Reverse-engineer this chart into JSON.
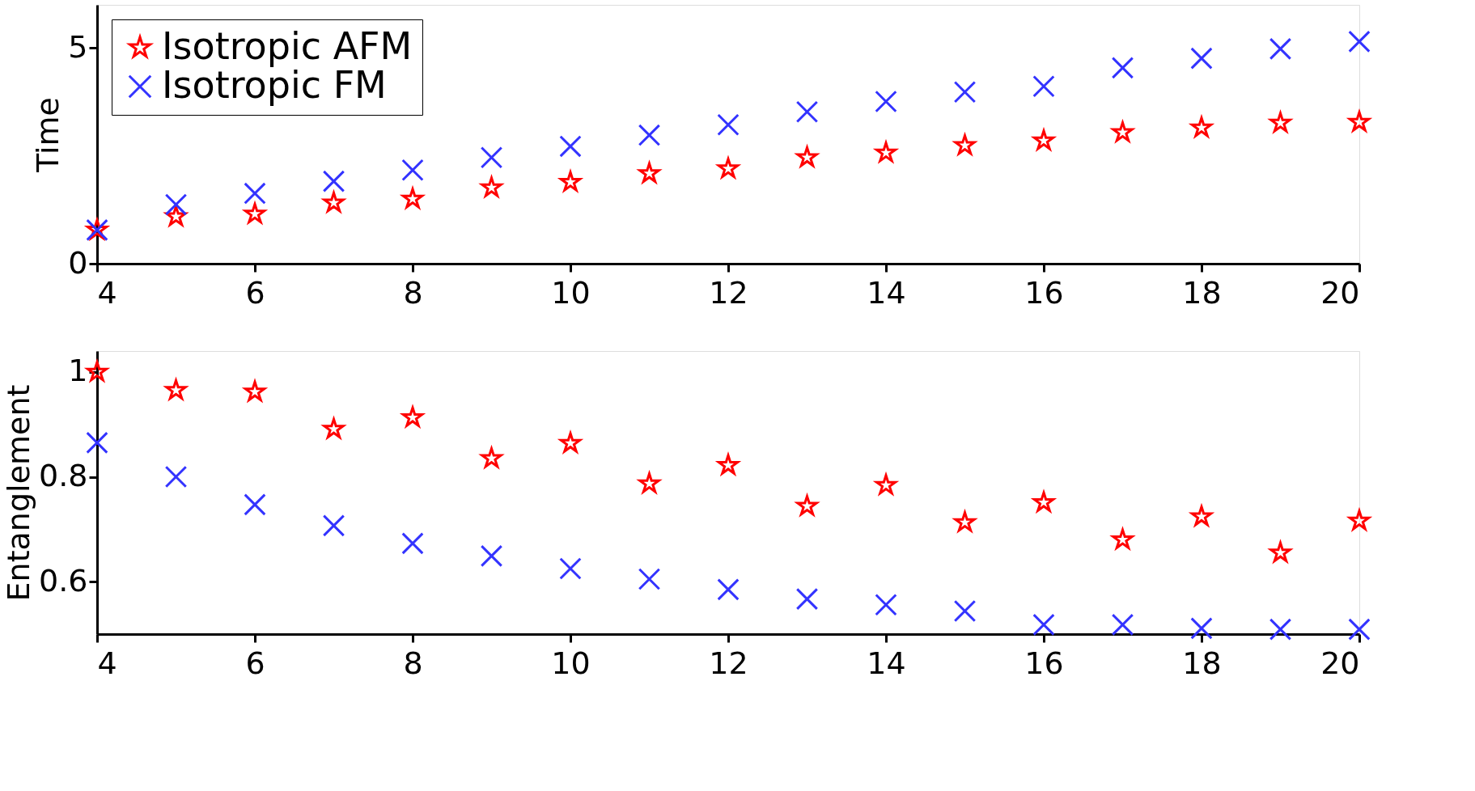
{
  "chart_data": [
    {
      "type": "scatter",
      "ylabel": "Time",
      "x": [
        4,
        5,
        6,
        7,
        8,
        9,
        10,
        11,
        12,
        13,
        14,
        15,
        16,
        17,
        18,
        19,
        20
      ],
      "xlim": [
        4,
        20
      ],
      "xticks": [
        4,
        6,
        8,
        10,
        12,
        14,
        16,
        18,
        20
      ],
      "ylim": [
        0,
        6
      ],
      "yticks": [
        0,
        5
      ],
      "grid": false,
      "legend": "top left",
      "series": [
        {
          "name": "Isotropic AFM",
          "color": "#ff0000",
          "marker": "star",
          "values": [
            0.78,
            1.09,
            1.15,
            1.41,
            1.5,
            1.76,
            1.89,
            2.09,
            2.2,
            2.46,
            2.57,
            2.74,
            2.85,
            3.04,
            3.15,
            3.26,
            3.28
          ]
        },
        {
          "name": "Isotropic FM",
          "color": "#3333ff",
          "marker": "cross",
          "values": [
            0.78,
            1.37,
            1.63,
            1.91,
            2.17,
            2.46,
            2.72,
            2.98,
            3.22,
            3.52,
            3.76,
            3.98,
            4.11,
            4.54,
            4.76,
            4.98,
            5.15
          ]
        }
      ]
    },
    {
      "type": "scatter",
      "ylabel": "Entanglement",
      "x": [
        4,
        5,
        6,
        7,
        8,
        9,
        10,
        11,
        12,
        13,
        14,
        15,
        16,
        17,
        18,
        19,
        20
      ],
      "xlim": [
        4,
        20
      ],
      "xticks": [
        4,
        6,
        8,
        10,
        12,
        14,
        16,
        18,
        20
      ],
      "ylim": [
        0.5,
        1.04
      ],
      "yticks": [
        0.6,
        0.8,
        1
      ],
      "grid": false,
      "series": [
        {
          "color": "#ff0000",
          "marker": "star",
          "values": [
            1.0,
            0.965,
            0.962,
            0.891,
            0.913,
            0.835,
            0.864,
            0.787,
            0.822,
            0.744,
            0.784,
            0.713,
            0.751,
            0.68,
            0.724,
            0.655,
            0.716
          ]
        },
        {
          "color": "#3333ff",
          "marker": "cross",
          "values": [
            0.865,
            0.8,
            0.747,
            0.707,
            0.673,
            0.649,
            0.625,
            0.605,
            0.585,
            0.567,
            0.556,
            0.544,
            0.518,
            0.518,
            0.511,
            0.509,
            0.509
          ]
        }
      ]
    }
  ]
}
